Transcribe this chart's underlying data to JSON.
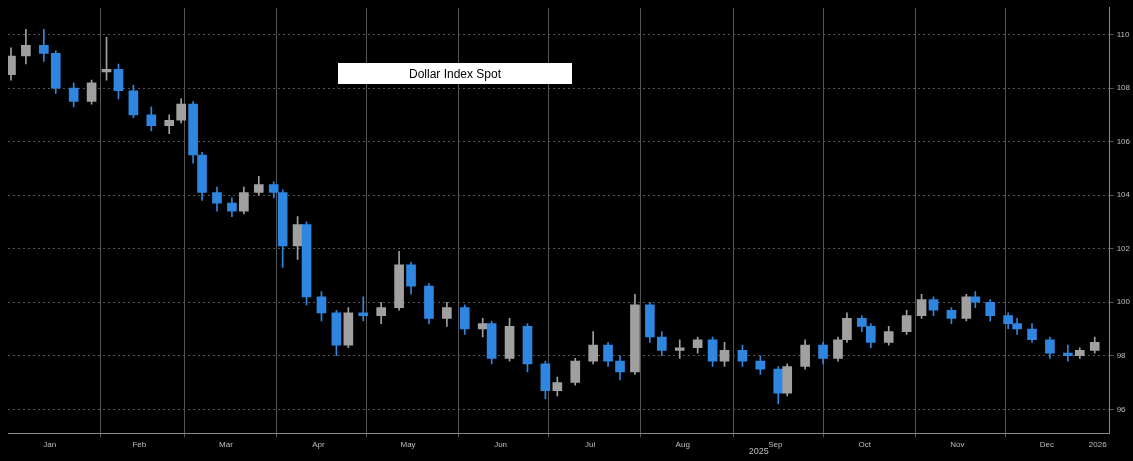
{
  "chart_data": {
    "type": "candlestick",
    "title": "Dollar Index Spot",
    "x": [
      "2025-01-02",
      "2025-01-07",
      "2025-01-13",
      "2025-01-17",
      "2025-01-23",
      "2025-01-29",
      "2025-02-03",
      "2025-02-07",
      "2025-02-12",
      "2025-02-18",
      "2025-02-24",
      "2025-02-28",
      "2025-03-04",
      "2025-03-07",
      "2025-03-12",
      "2025-03-17",
      "2025-03-21",
      "2025-03-26",
      "2025-03-31",
      "2025-04-03",
      "2025-04-08",
      "2025-04-11",
      "2025-04-16",
      "2025-04-21",
      "2025-04-25",
      "2025-04-30",
      "2025-05-06",
      "2025-05-12",
      "2025-05-16",
      "2025-05-22",
      "2025-05-28",
      "2025-06-03",
      "2025-06-09",
      "2025-06-12",
      "2025-06-18",
      "2025-06-24",
      "2025-06-30",
      "2025-07-04",
      "2025-07-10",
      "2025-07-16",
      "2025-07-21",
      "2025-07-25",
      "2025-07-30",
      "2025-08-04",
      "2025-08-08",
      "2025-08-14",
      "2025-08-20",
      "2025-08-25",
      "2025-08-29",
      "2025-09-04",
      "2025-09-10",
      "2025-09-16",
      "2025-09-19",
      "2025-09-25",
      "2025-10-01",
      "2025-10-06",
      "2025-10-09",
      "2025-10-14",
      "2025-10-17",
      "2025-10-23",
      "2025-10-29",
      "2025-11-03",
      "2025-11-07",
      "2025-11-13",
      "2025-11-18",
      "2025-11-21",
      "2025-11-26",
      "2025-12-02",
      "2025-12-05",
      "2025-12-10",
      "2025-12-16",
      "2025-12-22",
      "2025-12-26",
      "2025-12-31"
    ],
    "ohlc": [
      [
        108.5,
        109.5,
        108.3,
        109.2
      ],
      [
        109.2,
        110.2,
        108.9,
        109.6
      ],
      [
        109.6,
        110.2,
        109.0,
        109.3
      ],
      [
        109.3,
        109.4,
        107.8,
        108.0
      ],
      [
        108.0,
        108.2,
        107.3,
        107.5
      ],
      [
        107.5,
        108.3,
        107.4,
        108.2
      ],
      [
        108.6,
        109.9,
        108.3,
        108.7
      ],
      [
        108.7,
        108.9,
        107.6,
        107.9
      ],
      [
        107.9,
        108.1,
        106.9,
        107.0
      ],
      [
        107.0,
        107.3,
        106.4,
        106.6
      ],
      [
        106.6,
        107.0,
        106.3,
        106.8
      ],
      [
        106.8,
        107.6,
        106.7,
        107.4
      ],
      [
        107.4,
        107.5,
        105.2,
        105.5
      ],
      [
        105.5,
        105.6,
        103.8,
        104.1
      ],
      [
        104.1,
        104.3,
        103.4,
        103.7
      ],
      [
        103.7,
        103.9,
        103.2,
        103.4
      ],
      [
        103.4,
        104.3,
        103.3,
        104.1
      ],
      [
        104.1,
        104.7,
        104.0,
        104.4
      ],
      [
        104.4,
        104.5,
        103.9,
        104.1
      ],
      [
        104.1,
        104.2,
        101.3,
        102.1
      ],
      [
        102.1,
        103.2,
        101.6,
        102.9
      ],
      [
        102.9,
        103.0,
        99.9,
        100.2
      ],
      [
        100.2,
        100.4,
        99.3,
        99.6
      ],
      [
        99.6,
        99.7,
        98.0,
        98.4
      ],
      [
        98.4,
        99.8,
        98.3,
        99.6
      ],
      [
        99.6,
        100.2,
        99.3,
        99.5
      ],
      [
        99.5,
        100.0,
        99.2,
        99.8
      ],
      [
        99.8,
        101.9,
        99.7,
        101.4
      ],
      [
        101.4,
        101.5,
        100.3,
        100.6
      ],
      [
        100.6,
        100.7,
        99.2,
        99.4
      ],
      [
        99.4,
        100.0,
        99.1,
        99.8
      ],
      [
        99.8,
        99.9,
        98.8,
        99.0
      ],
      [
        99.0,
        99.4,
        98.7,
        99.2
      ],
      [
        99.2,
        99.3,
        97.7,
        97.9
      ],
      [
        97.9,
        99.4,
        97.8,
        99.1
      ],
      [
        99.1,
        99.2,
        97.4,
        97.7
      ],
      [
        97.7,
        97.8,
        96.4,
        96.7
      ],
      [
        96.7,
        97.2,
        96.5,
        97.0
      ],
      [
        97.0,
        97.9,
        96.9,
        97.8
      ],
      [
        97.8,
        98.9,
        97.7,
        98.4
      ],
      [
        98.4,
        98.5,
        97.6,
        97.8
      ],
      [
        97.8,
        98.0,
        97.1,
        97.4
      ],
      [
        97.4,
        100.3,
        97.3,
        99.9
      ],
      [
        99.9,
        100.0,
        98.5,
        98.7
      ],
      [
        98.7,
        98.9,
        98.0,
        98.2
      ],
      [
        98.2,
        98.6,
        97.9,
        98.3
      ],
      [
        98.3,
        98.7,
        98.1,
        98.6
      ],
      [
        98.6,
        98.7,
        97.6,
        97.8
      ],
      [
        97.8,
        98.5,
        97.6,
        98.2
      ],
      [
        98.2,
        98.4,
        97.6,
        97.8
      ],
      [
        97.8,
        98.0,
        97.3,
        97.5
      ],
      [
        97.5,
        97.6,
        96.2,
        96.6
      ],
      [
        96.6,
        97.7,
        96.5,
        97.6
      ],
      [
        97.6,
        98.6,
        97.5,
        98.4
      ],
      [
        98.4,
        98.5,
        97.7,
        97.9
      ],
      [
        97.9,
        98.7,
        97.8,
        98.6
      ],
      [
        98.6,
        99.6,
        98.5,
        99.4
      ],
      [
        99.4,
        99.5,
        98.9,
        99.1
      ],
      [
        99.1,
        99.2,
        98.3,
        98.5
      ],
      [
        98.5,
        99.1,
        98.4,
        98.9
      ],
      [
        98.9,
        99.7,
        98.8,
        99.5
      ],
      [
        99.5,
        100.3,
        99.4,
        100.1
      ],
      [
        100.1,
        100.2,
        99.5,
        99.7
      ],
      [
        99.7,
        99.8,
        99.2,
        99.4
      ],
      [
        99.4,
        100.3,
        99.3,
        100.2
      ],
      [
        100.2,
        100.4,
        99.8,
        100.0
      ],
      [
        100.0,
        100.1,
        99.3,
        99.5
      ],
      [
        99.5,
        99.6,
        99.0,
        99.2
      ],
      [
        99.2,
        99.4,
        98.8,
        99.0
      ],
      [
        99.0,
        99.2,
        98.5,
        98.6
      ],
      [
        98.6,
        98.7,
        97.9,
        98.1
      ],
      [
        98.1,
        98.4,
        97.8,
        98.0
      ],
      [
        98.0,
        98.3,
        97.9,
        98.2
      ],
      [
        98.2,
        98.7,
        98.1,
        98.5
      ]
    ],
    "colors": [
      "#a0a0a0",
      "#a0a0a0",
      "#2f86e0",
      "#2f86e0",
      "#2f86e0",
      "#a0a0a0",
      "#a0a0a0",
      "#2f86e0",
      "#2f86e0",
      "#2f86e0",
      "#a0a0a0",
      "#a0a0a0",
      "#2f86e0",
      "#2f86e0",
      "#2f86e0",
      "#2f86e0",
      "#a0a0a0",
      "#a0a0a0",
      "#2f86e0",
      "#2f86e0",
      "#a0a0a0",
      "#2f86e0",
      "#2f86e0",
      "#2f86e0",
      "#a0a0a0",
      "#2f86e0",
      "#a0a0a0",
      "#a0a0a0",
      "#2f86e0",
      "#2f86e0",
      "#a0a0a0",
      "#2f86e0",
      "#a0a0a0",
      "#2f86e0",
      "#a0a0a0",
      "#2f86e0",
      "#2f86e0",
      "#a0a0a0",
      "#a0a0a0",
      "#a0a0a0",
      "#2f86e0",
      "#2f86e0",
      "#a0a0a0",
      "#2f86e0",
      "#2f86e0",
      "#a0a0a0",
      "#a0a0a0",
      "#2f86e0",
      "#a0a0a0",
      "#2f86e0",
      "#2f86e0",
      "#2f86e0",
      "#a0a0a0",
      "#a0a0a0",
      "#2f86e0",
      "#a0a0a0",
      "#a0a0a0",
      "#2f86e0",
      "#2f86e0",
      "#a0a0a0",
      "#a0a0a0",
      "#a0a0a0",
      "#2f86e0",
      "#2f86e0",
      "#a0a0a0",
      "#2f86e0",
      "#2f86e0",
      "#2f86e0",
      "#2f86e0",
      "#2f86e0",
      "#2f86e0",
      "#2f86e0",
      "#a0a0a0",
      "#a0a0a0"
    ],
    "xlim": [
      "2025-01-01",
      "2026-01-05"
    ],
    "xticks": [
      {
        "value": "2025-01-15",
        "label": "Jan"
      },
      {
        "value": "2025-02-01",
        "label": null
      },
      {
        "value": "2025-02-14",
        "label": "Feb"
      },
      {
        "value": "2025-03-01",
        "label": null
      },
      {
        "value": "2025-03-15",
        "label": "Mar"
      },
      {
        "value": "2025-04-01",
        "label": null
      },
      {
        "value": "2025-04-15",
        "label": "Apr"
      },
      {
        "value": "2025-05-01",
        "label": null
      },
      {
        "value": "2025-05-15",
        "label": "May"
      },
      {
        "value": "2025-06-01",
        "label": null
      },
      {
        "value": "2025-06-15",
        "label": "Jun"
      },
      {
        "value": "2025-07-01",
        "label": null
      },
      {
        "value": "2025-07-15",
        "label": "Jul"
      },
      {
        "value": "2025-08-01",
        "label": null
      },
      {
        "value": "2025-08-15",
        "label": "Aug"
      },
      {
        "value": "2025-09-01",
        "label": null
      },
      {
        "value": "2025-09-15",
        "label": "Sep"
      },
      {
        "value": "2025-10-01",
        "label": null
      },
      {
        "value": "2025-10-15",
        "label": "Oct"
      },
      {
        "value": "2025-11-01",
        "label": null
      },
      {
        "value": "2025-11-15",
        "label": "Nov"
      },
      {
        "value": "2025-12-01",
        "label": null
      },
      {
        "value": "2025-12-15",
        "label": "Dec"
      },
      {
        "value": "2026-01-01",
        "label": "2026"
      }
    ],
    "ylim": [
      95.1,
      111.0
    ],
    "yticks": [
      96,
      98,
      100,
      102,
      104,
      106,
      108,
      110
    ],
    "annotations": [
      "2025"
    ],
    "grid": true
  }
}
